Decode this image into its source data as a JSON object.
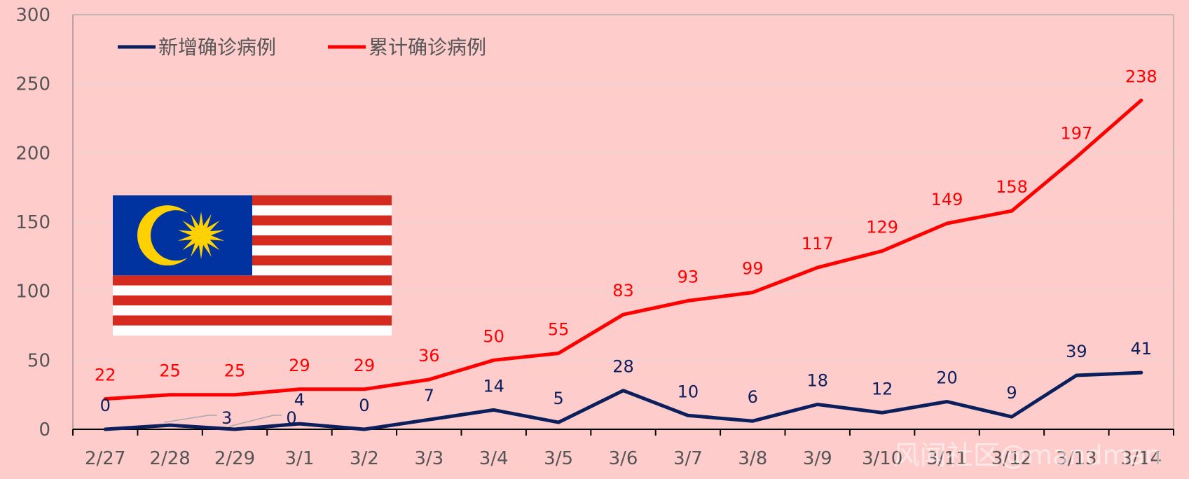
{
  "chart_data": {
    "type": "line",
    "categories": [
      "2/27",
      "2/28",
      "2/29",
      "3/1",
      "3/2",
      "3/3",
      "3/4",
      "3/5",
      "3/6",
      "3/7",
      "3/8",
      "3/9",
      "3/10",
      "3/11",
      "3/12",
      "3/13",
      "3/14"
    ],
    "series": [
      {
        "name": "新增确诊病例",
        "color": "#0B1F5C",
        "values": [
          0,
          3,
          0,
          4,
          0,
          7,
          14,
          5,
          28,
          10,
          6,
          18,
          12,
          20,
          9,
          39,
          41
        ]
      },
      {
        "name": "累计确诊病例",
        "color": "#FF0000",
        "values": [
          22,
          25,
          25,
          29,
          29,
          36,
          50,
          55,
          83,
          93,
          99,
          117,
          129,
          149,
          158,
          197,
          238
        ]
      }
    ],
    "title": "",
    "xlabel": "",
    "ylabel": "",
    "ylim": [
      0,
      300
    ],
    "yticks": [
      0,
      50,
      100,
      150,
      200,
      250,
      300
    ],
    "grid": true,
    "legend_position": "top-left"
  },
  "flag": {
    "name": "malaysia-flag",
    "blue": "#0032A0",
    "red": "#D52B1E",
    "yellow": "#FFD100"
  },
  "watermark": "风闻社区@mandman",
  "colors": {
    "background": "#FFCCCC",
    "grid": "#E9D3D3",
    "axis": "#000000"
  }
}
